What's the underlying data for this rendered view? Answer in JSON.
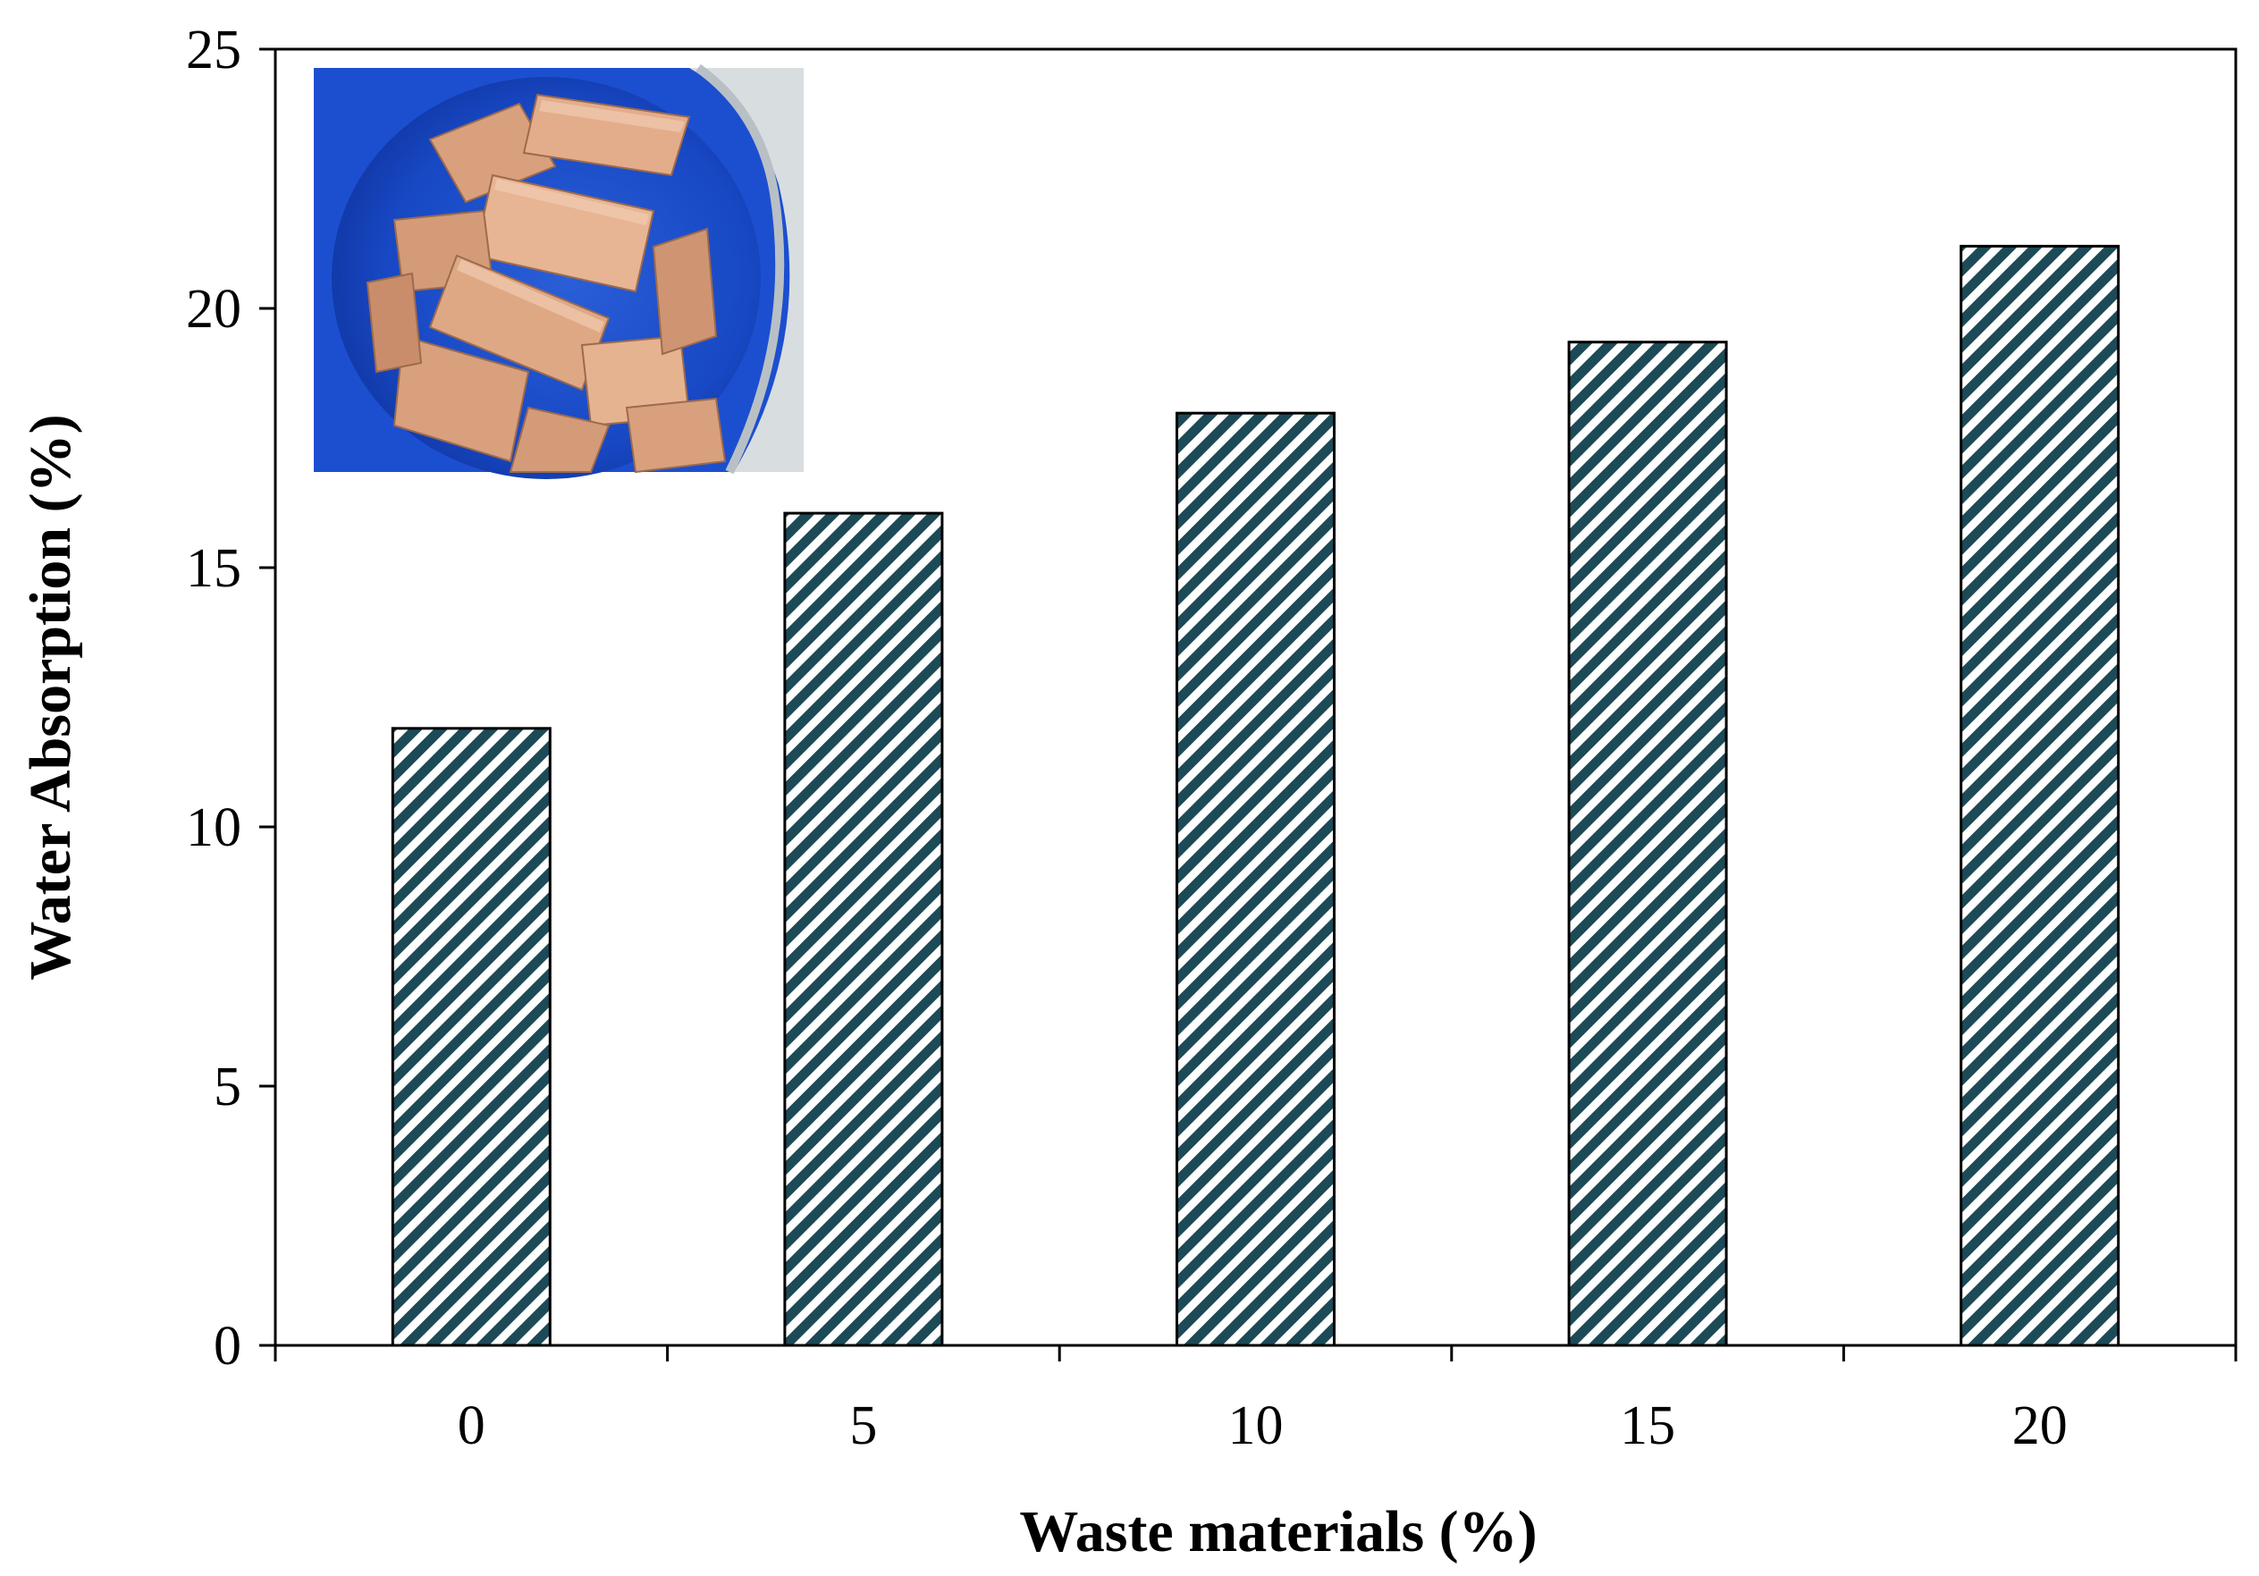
{
  "chart_data": {
    "type": "bar",
    "title": "",
    "xlabel": "Waste materials (%)",
    "ylabel": "Water Absorption (%)",
    "categories": [
      "0",
      "5",
      "10",
      "15",
      "20"
    ],
    "values": [
      11.9,
      16.05,
      17.98,
      19.35,
      21.2
    ],
    "ylim": [
      0,
      25
    ],
    "yticks": [
      "0",
      "5",
      "10",
      "15",
      "20",
      "25"
    ],
    "grid": false,
    "legend": "none",
    "bar_pattern": "diagonal-hatch",
    "colors": {
      "hatch": "#1d4a57",
      "bar_background": "#ffffff",
      "axis": "#000000"
    },
    "inset_image": "photo of clay bricks soaking in a blue water container"
  }
}
